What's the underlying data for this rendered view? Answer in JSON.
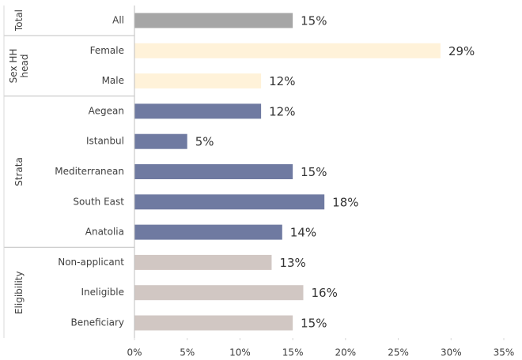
{
  "chart_data": {
    "type": "bar",
    "orientation": "horizontal",
    "series": [
      {
        "name": "Total",
        "color": "#a6a6a6",
        "categories": [
          "All"
        ],
        "values": [
          15
        ],
        "value_labels": [
          "15%"
        ]
      },
      {
        "name": "Sex HH head",
        "color": "#fff2d9",
        "categories": [
          "Female",
          "Male"
        ],
        "values": [
          29,
          12
        ],
        "value_labels": [
          "29%",
          "12%"
        ]
      },
      {
        "name": "Strata",
        "color": "#6f7aa1",
        "categories": [
          "Aegean",
          "Istanbul",
          "Mediterranean",
          "South East",
          "Anatolia"
        ],
        "values": [
          12,
          5,
          15,
          18,
          14
        ],
        "value_labels": [
          "12%",
          "5%",
          "15%",
          "18%",
          "14%"
        ]
      },
      {
        "name": "Eligibility",
        "color": "#d1c7c3",
        "categories": [
          "Non-applicant",
          "Ineligible",
          "Beneficiary"
        ],
        "values": [
          13,
          16,
          15
        ],
        "value_labels": [
          "13%",
          "16%",
          "15%"
        ]
      }
    ],
    "xlim": [
      0,
      35
    ],
    "xticks": [
      {
        "value": 0,
        "label": "0%"
      },
      {
        "value": 5,
        "label": "5%"
      },
      {
        "value": 10,
        "label": "10%"
      },
      {
        "value": 15,
        "label": "15%"
      },
      {
        "value": 20,
        "label": "20%"
      },
      {
        "value": 25,
        "label": "25%"
      },
      {
        "value": 30,
        "label": "30%"
      },
      {
        "value": 35,
        "label": "35%"
      }
    ]
  }
}
